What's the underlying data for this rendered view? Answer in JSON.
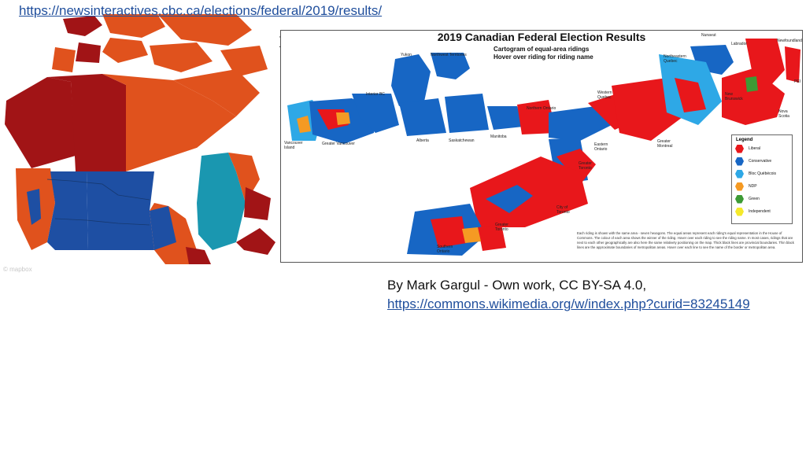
{
  "top_link": "https://newsinteractives.cbc.ca/elections/federal/2019/results/",
  "map": {
    "zoom_in": "+",
    "zoom_out": "−",
    "attribution": "© mapbox"
  },
  "cartogram": {
    "title": "2019 Canadian Federal Election Results",
    "subtitle_1": "Cartogram of equal-area ridings",
    "subtitle_2": "Hover over riding for riding name",
    "regions": [
      "Yukon",
      "Northwest Territories",
      "Nunavut",
      "Labrador",
      "Newfoundland",
      "Northeastern Quebec",
      "Interior BC",
      "Vancouver Island",
      "Greater Vancouver",
      "Alberta",
      "Saskatchewan",
      "Manitoba",
      "Northern Ontario",
      "Western Quebec",
      "New Brunswick",
      "PEI",
      "Nova Scotia",
      "Greater Montreal",
      "Eastern Ontario",
      "Greater Toronto",
      "City of Toronto",
      "Greater Toronto",
      "Southern Ontario"
    ],
    "legend_title": "Legend",
    "legend": [
      {
        "label": "Liberal",
        "color": "#e8171b"
      },
      {
        "label": "Conservative",
        "color": "#1766c4"
      },
      {
        "label": "Bloc Québécois",
        "color": "#2ea8e6"
      },
      {
        "label": "NDP",
        "color": "#f59a23"
      },
      {
        "label": "Green",
        "color": "#3d9b35"
      },
      {
        "label": "Independent",
        "color": "#f5e92a"
      }
    ],
    "note": "Each riding is shown with the same area - seven hexagons. The equal areas represent each riding's equal representation in the House of Commons. The colour of each area shows the winner of the riding. Hover over each riding to see the riding name. In most cases, ridings that are next to each other geographically are also here the same relatively positioning on the map. Thick black lines are provincial boundaries. Thin black lines are the approximate boundaries of metropolitan areas. Hover over each line to see the name of the border or metropolitan area."
  },
  "caption": {
    "line1": "By Mark Gargul - Own work, CC BY-SA 4.0,",
    "line2": "https://commons.wikimedia.org/w/index.php?curid=83245149"
  },
  "colors": {
    "liberal": "#e8171b",
    "conservative": "#1766c4",
    "bloc": "#2ea8e6",
    "ndp": "#f59a23",
    "green": "#3d9b35",
    "map_red": "#a11416",
    "map_orange": "#e0521d",
    "map_blue": "#1e4fa3",
    "map_teal": "#1a97b0"
  }
}
